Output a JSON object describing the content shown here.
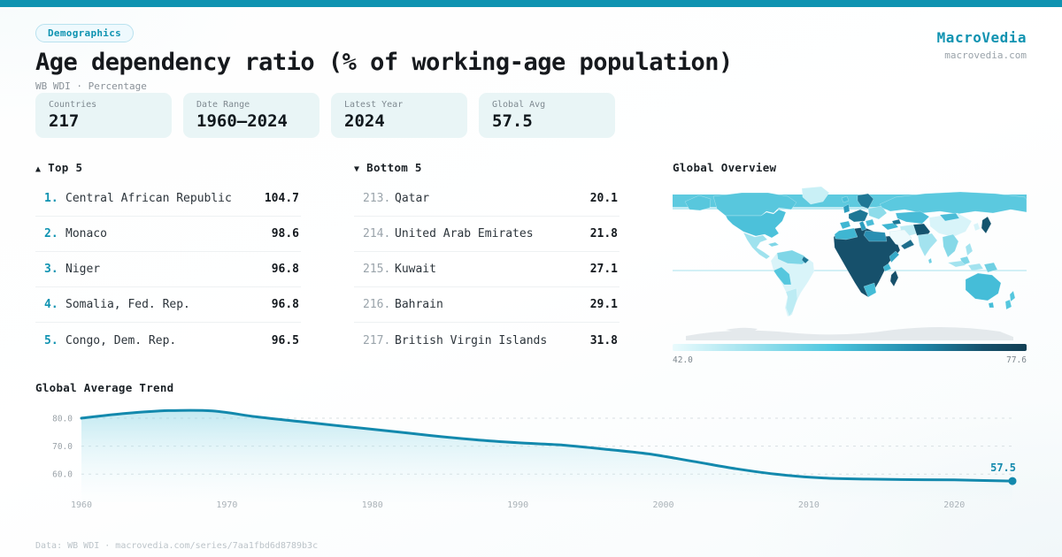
{
  "brand": {
    "name": "MacroVedia",
    "domain": "macrovedia.com"
  },
  "header": {
    "category_badge": "Demographics",
    "title": "Age dependency ratio (% of working-age population)",
    "subtitle": "WB WDI · Percentage"
  },
  "stats": [
    {
      "label": "Countries",
      "value": "217"
    },
    {
      "label": "Date Range",
      "value": "1960—2024"
    },
    {
      "label": "Latest Year",
      "value": "2024"
    },
    {
      "label": "Global Avg",
      "value": "57.5"
    }
  ],
  "top5": {
    "arrow": "▲",
    "title": "Top 5",
    "rows": [
      {
        "rank": "1.",
        "name": "Central African Republic",
        "value": "104.7"
      },
      {
        "rank": "2.",
        "name": "Monaco",
        "value": "98.6"
      },
      {
        "rank": "3.",
        "name": "Niger",
        "value": "96.8"
      },
      {
        "rank": "4.",
        "name": "Somalia, Fed. Rep.",
        "value": "96.8"
      },
      {
        "rank": "5.",
        "name": "Congo, Dem. Rep.",
        "value": "96.5"
      }
    ]
  },
  "bottom5": {
    "arrow": "▼",
    "title": "Bottom 5",
    "rows": [
      {
        "rank": "213.",
        "name": "Qatar",
        "value": "20.1"
      },
      {
        "rank": "214.",
        "name": "United Arab Emirates",
        "value": "21.8"
      },
      {
        "rank": "215.",
        "name": "Kuwait",
        "value": "27.1"
      },
      {
        "rank": "216.",
        "name": "Bahrain",
        "value": "29.1"
      },
      {
        "rank": "217.",
        "name": "British Virgin Islands",
        "value": "31.8"
      }
    ]
  },
  "map": {
    "title": "Global Overview",
    "scale_min": "42.0",
    "scale_max": "77.6",
    "scale_min_color": "#eafbfd",
    "scale_max_color": "#123f54"
  },
  "trend": {
    "title": "Global Average Trend"
  },
  "chart_data": {
    "type": "area",
    "title": "Global Average Trend",
    "x": [
      1960,
      1963,
      1966,
      1969,
      1972,
      1975,
      1978,
      1981,
      1984,
      1987,
      1990,
      1993,
      1996,
      1999,
      2002,
      2005,
      2008,
      2011,
      2014,
      2017,
      2020,
      2024
    ],
    "values": [
      80.0,
      81.7,
      82.7,
      82.6,
      80.5,
      78.8,
      77.1,
      75.5,
      73.8,
      72.3,
      71.2,
      70.4,
      68.9,
      67.2,
      64.6,
      61.9,
      59.8,
      58.6,
      58.2,
      58.0,
      57.9,
      57.5
    ],
    "xticks": [
      1960,
      1970,
      1980,
      1990,
      2000,
      2010,
      2020
    ],
    "yticks": [
      80,
      70,
      60
    ],
    "xlim": [
      1960,
      2024
    ],
    "ylim": [
      55,
      86
    ],
    "end_label": "57.5",
    "grid": "dashed-horizontal",
    "legend": "none",
    "line_color": "#1389ad",
    "xlabel": "",
    "ylabel": ""
  },
  "footer": {
    "text": "Data: WB WDI · macrovedia.com/series/7aa1fbd6d8789b3c"
  },
  "colors": {
    "accent": "#0f93b1",
    "topbar": "#0f93b1",
    "card_bg": "#e9f5f6",
    "title_text": "#16191d",
    "muted_text": "#8a9299"
  }
}
